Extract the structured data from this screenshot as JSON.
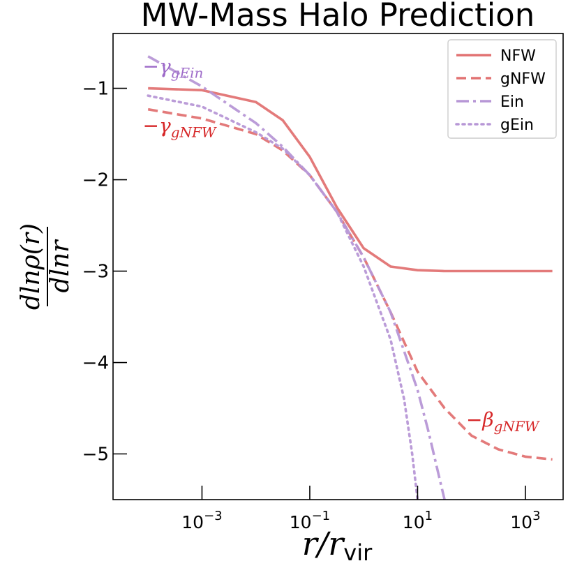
{
  "chart_data": {
    "type": "line",
    "title": "MW-Mass Halo Prediction",
    "xlabel": "r/r_vir",
    "xlabel_parts": {
      "main": "r/r",
      "sub": "vir"
    },
    "ylabel": "dlnρ(r) / dlnr",
    "ylabel_parts": {
      "num": "dlnρ(r)",
      "den": "dlnr"
    },
    "xscale": "log",
    "xlim_log10": [
      -4.65,
      3.7
    ],
    "ylim": [
      -5.5,
      -0.4
    ],
    "x_ticks": [
      {
        "base": "10",
        "exp": "−3",
        "log10": -3
      },
      {
        "base": "10",
        "exp": "−1",
        "log10": -1
      },
      {
        "base": "10",
        "exp": "1",
        "log10": 1
      },
      {
        "base": "10",
        "exp": "3",
        "log10": 3
      }
    ],
    "y_ticks": [
      {
        "label": "−1",
        "value": -1
      },
      {
        "label": "−2",
        "value": -2
      },
      {
        "label": "−3",
        "value": -3
      },
      {
        "label": "−4",
        "value": -4
      },
      {
        "label": "−5",
        "value": -5
      }
    ],
    "legend_position": "top-right",
    "series": [
      {
        "name": "NFW",
        "style": "solid",
        "color": "#e27373",
        "log10_x": [
          -4.0,
          -3.0,
          -2.0,
          -1.5,
          -1.0,
          -0.5,
          0.0,
          0.5,
          1.0,
          1.5,
          2.0,
          3.0,
          3.5
        ],
        "y": [
          -1.0,
          -1.02,
          -1.15,
          -1.35,
          -1.75,
          -2.3,
          -2.75,
          -2.95,
          -2.99,
          -3.0,
          -3.0,
          -3.0,
          -3.0
        ]
      },
      {
        "name": "gNFW",
        "style": "dashed",
        "color": "#e27373",
        "log10_x": [
          -4.0,
          -3.0,
          -2.0,
          -1.5,
          -1.0,
          -0.5,
          0.0,
          0.5,
          1.0,
          1.5,
          2.0,
          2.5,
          3.0,
          3.5
        ],
        "y": [
          -1.23,
          -1.33,
          -1.5,
          -1.68,
          -1.95,
          -2.35,
          -2.85,
          -3.45,
          -4.1,
          -4.5,
          -4.8,
          -4.95,
          -5.03,
          -5.06
        ]
      },
      {
        "name": "Ein",
        "style": "dashdot",
        "color": "#b797d6",
        "log10_x": [
          -4.0,
          -3.0,
          -2.0,
          -1.5,
          -1.0,
          -0.5,
          0.0,
          0.5,
          1.0,
          1.2,
          1.4,
          1.5
        ],
        "y": [
          -0.65,
          -0.98,
          -1.38,
          -1.64,
          -1.95,
          -2.35,
          -2.85,
          -3.45,
          -4.3,
          -4.75,
          -5.25,
          -5.5
        ]
      },
      {
        "name": "gEin",
        "style": "dotted",
        "color": "#b797d6",
        "log10_x": [
          -4.0,
          -3.0,
          -2.0,
          -1.5,
          -1.0,
          -0.5,
          0.0,
          0.5,
          0.75,
          0.9,
          1.0
        ],
        "y": [
          -1.08,
          -1.2,
          -1.48,
          -1.66,
          -1.95,
          -2.35,
          -2.95,
          -3.75,
          -4.4,
          -5.0,
          -5.5
        ]
      }
    ],
    "annotations": [
      {
        "prefix": "−",
        "symbol": "γ",
        "sub": "gEin",
        "color": "#9e6bc9",
        "log10_x": -4.1,
        "y": -0.83
      },
      {
        "prefix": "−",
        "symbol": "γ",
        "sub": "gNFW",
        "color": "#d62728",
        "log10_x": -4.1,
        "y": -1.48
      },
      {
        "prefix": "−",
        "symbol": "β",
        "sub": "gNFW",
        "color": "#d62728",
        "log10_x": 1.9,
        "y": -4.7
      }
    ]
  }
}
